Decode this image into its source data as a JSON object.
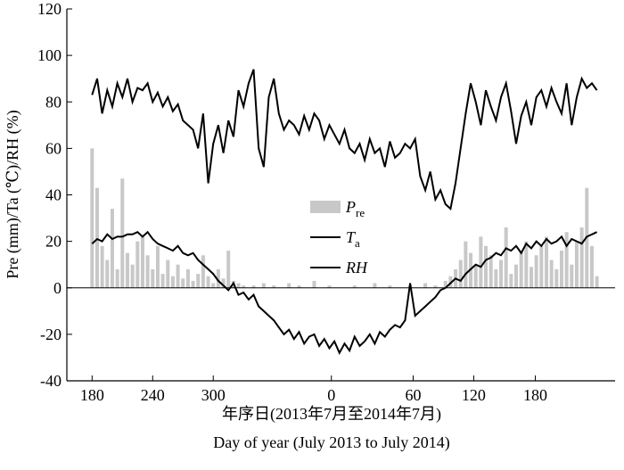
{
  "chart_data": {
    "type": "line",
    "xlabel": "年序日(2013年7月至2014年7月)",
    "xlabel2": "Day of year (July 2013 to July 2014)",
    "ylabel": "Pre (mm)/Ta (℃)/RH (%)",
    "x": [
      180,
      185,
      190,
      195,
      200,
      205,
      210,
      215,
      220,
      225,
      230,
      235,
      240,
      245,
      250,
      255,
      260,
      265,
      270,
      275,
      280,
      285,
      290,
      295,
      300,
      305,
      310,
      315,
      320,
      325,
      330,
      335,
      340,
      345,
      350,
      355,
      360,
      365,
      370,
      375,
      380,
      385,
      390,
      395,
      400,
      405,
      410,
      415,
      420,
      425,
      430,
      435,
      440,
      445,
      450,
      455,
      460,
      465,
      470,
      475,
      480,
      485,
      490,
      495,
      500,
      505,
      510,
      515,
      520,
      525,
      530,
      535,
      540,
      545,
      550,
      555,
      560,
      565,
      570,
      575,
      580,
      585,
      590,
      595,
      600,
      605,
      610,
      615,
      620,
      625,
      630,
      635,
      640,
      645,
      650,
      655,
      660,
      665,
      670,
      675,
      680
    ],
    "series": [
      {
        "name": "Pre",
        "kind": "bar",
        "color": "#c8c8c8",
        "values": [
          60,
          43,
          18,
          12,
          34,
          8,
          47,
          15,
          10,
          20,
          22,
          14,
          8,
          18,
          6,
          12,
          5,
          10,
          4,
          8,
          3,
          6,
          14,
          5,
          2,
          8,
          4,
          16,
          3,
          2,
          1,
          0,
          1,
          0,
          2,
          0,
          1,
          0,
          0,
          2,
          0,
          1,
          0,
          0,
          3,
          0,
          0,
          1,
          0,
          0,
          0,
          0,
          1,
          0,
          0,
          0,
          2,
          0,
          0,
          1,
          0,
          0,
          0,
          1,
          0,
          0,
          2,
          0,
          1,
          0,
          3,
          5,
          8,
          12,
          20,
          15,
          10,
          22,
          18,
          14,
          8,
          12,
          26,
          6,
          10,
          16,
          20,
          9,
          14,
          18,
          22,
          12,
          8,
          16,
          24,
          10,
          20,
          26,
          43,
          18,
          5
        ]
      },
      {
        "name": "Ta",
        "kind": "line",
        "color": "#000000",
        "values": [
          19,
          21,
          20,
          23,
          21,
          22,
          22,
          23,
          23,
          24,
          22,
          24,
          21,
          19,
          18,
          17,
          16,
          18,
          15,
          14,
          15,
          12,
          10,
          8,
          6,
          3,
          1,
          -1,
          2,
          -3,
          -2,
          -5,
          -3,
          -8,
          -10,
          -12,
          -14,
          -17,
          -20,
          -18,
          -22,
          -19,
          -24,
          -21,
          -20,
          -25,
          -22,
          -26,
          -23,
          -28,
          -24,
          -27,
          -21,
          -25,
          -23,
          -20,
          -24,
          -19,
          -21,
          -18,
          -16,
          -17,
          -14,
          2,
          -12,
          -10,
          -8,
          -6,
          -4,
          -1,
          0,
          2,
          4,
          3,
          6,
          8,
          10,
          9,
          12,
          13,
          15,
          14,
          17,
          16,
          18,
          15,
          19,
          17,
          20,
          18,
          21,
          19,
          20,
          22,
          18,
          21,
          20,
          19,
          22,
          23,
          24
        ]
      },
      {
        "name": "RH",
        "kind": "line",
        "color": "#000000",
        "values": [
          83,
          90,
          75,
          85,
          78,
          88,
          82,
          90,
          80,
          86,
          85,
          88,
          80,
          84,
          78,
          82,
          76,
          79,
          72,
          70,
          68,
          60,
          75,
          45,
          62,
          70,
          58,
          72,
          65,
          85,
          78,
          88,
          94,
          60,
          52,
          82,
          90,
          75,
          68,
          72,
          70,
          66,
          74,
          68,
          75,
          72,
          64,
          70,
          66,
          62,
          68,
          60,
          58,
          62,
          55,
          64,
          58,
          60,
          52,
          63,
          56,
          58,
          62,
          60,
          64,
          48,
          42,
          50,
          38,
          42,
          36,
          34,
          45,
          60,
          75,
          88,
          80,
          70,
          85,
          78,
          72,
          82,
          88,
          76,
          62,
          74,
          80,
          70,
          82,
          85,
          78,
          86,
          80,
          75,
          88,
          70,
          82,
          90,
          86,
          88,
          85
        ]
      }
    ],
    "xlim": [
      155,
      698
    ],
    "xticks": [
      {
        "value": 180,
        "label": "180"
      },
      {
        "value": 240,
        "label": "240"
      },
      {
        "value": 300,
        "label": "300"
      },
      {
        "value": 417,
        "label": "0"
      },
      {
        "value": 498,
        "label": "60"
      },
      {
        "value": 558,
        "label": "120"
      },
      {
        "value": 619,
        "label": "180"
      }
    ],
    "ylim": [
      -40,
      120
    ],
    "yticks": [
      -40,
      -20,
      0,
      20,
      40,
      60,
      80,
      100,
      120
    ]
  }
}
